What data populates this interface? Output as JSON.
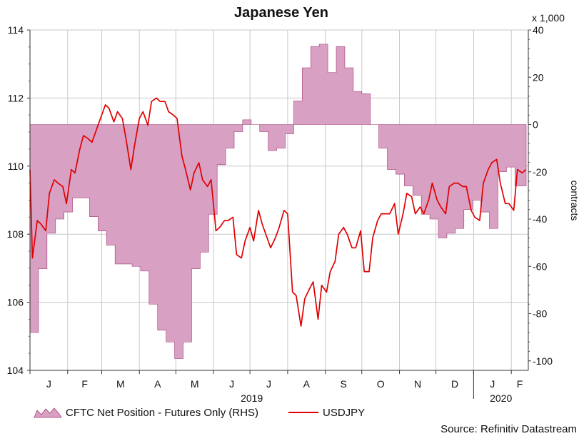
{
  "chart_data": {
    "type": "area+line",
    "title": "Japanese Yen",
    "left_axis": {
      "ticks": [
        104,
        106,
        108,
        110,
        112,
        114
      ],
      "ylim": [
        104,
        114
      ]
    },
    "right_axis": {
      "unit_note": "x 1,000",
      "label": "contracts",
      "ticks": [
        40,
        20,
        0,
        -20,
        -40,
        -60,
        -80,
        -100
      ],
      "ylim": [
        -104,
        40
      ]
    },
    "x_axis": {
      "months": [
        "J",
        "F",
        "M",
        "A",
        "M",
        "J",
        "J",
        "A",
        "S",
        "O",
        "N",
        "D",
        "J",
        "F"
      ],
      "years": [
        "2019",
        "2020"
      ],
      "start": "2019-01-01",
      "end": "2020-02-15"
    },
    "legend": [
      {
        "name": "CFTC Net Position - Futures Only (RHS)",
        "color": "#d8a0c2"
      },
      {
        "name": "USDJPY",
        "color": "#e00000"
      }
    ],
    "source": "Source: Refinitiv Datastream",
    "colors": {
      "area_fill": "#d8a0c2",
      "area_stroke": "#a23a74",
      "line": "#e00000",
      "grid": "#c8c8c8"
    },
    "series": [
      {
        "name": "CFTC Net Position - Futures Only (RHS)",
        "axis": "right",
        "style": "step-area",
        "points": [
          [
            "2019-01-01",
            -88
          ],
          [
            "2019-01-08",
            -61
          ],
          [
            "2019-01-15",
            -46
          ],
          [
            "2019-01-22",
            -40
          ],
          [
            "2019-01-29",
            -37
          ],
          [
            "2019-02-05",
            -31
          ],
          [
            "2019-02-12",
            -31
          ],
          [
            "2019-02-19",
            -39
          ],
          [
            "2019-02-26",
            -45
          ],
          [
            "2019-03-05",
            -51
          ],
          [
            "2019-03-12",
            -59
          ],
          [
            "2019-03-19",
            -59
          ],
          [
            "2019-03-26",
            -60
          ],
          [
            "2019-04-02",
            -62
          ],
          [
            "2019-04-09",
            -76
          ],
          [
            "2019-04-16",
            -87
          ],
          [
            "2019-04-23",
            -92
          ],
          [
            "2019-04-30",
            -99
          ],
          [
            "2019-05-07",
            -92
          ],
          [
            "2019-05-14",
            -61
          ],
          [
            "2019-05-21",
            -54
          ],
          [
            "2019-05-28",
            -38
          ],
          [
            "2019-06-04",
            -17
          ],
          [
            "2019-06-11",
            -10
          ],
          [
            "2019-06-18",
            -3
          ],
          [
            "2019-06-25",
            2
          ],
          [
            "2019-07-02",
            0
          ],
          [
            "2019-07-09",
            -3
          ],
          [
            "2019-07-16",
            -11
          ],
          [
            "2019-07-23",
            -10
          ],
          [
            "2019-07-30",
            -4
          ],
          [
            "2019-08-06",
            10
          ],
          [
            "2019-08-13",
            24
          ],
          [
            "2019-08-20",
            33
          ],
          [
            "2019-08-27",
            34
          ],
          [
            "2019-09-03",
            22
          ],
          [
            "2019-09-10",
            33
          ],
          [
            "2019-09-17",
            24
          ],
          [
            "2019-09-24",
            14
          ],
          [
            "2019-10-01",
            13
          ],
          [
            "2019-10-08",
            0
          ],
          [
            "2019-10-15",
            -10
          ],
          [
            "2019-10-22",
            -19
          ],
          [
            "2019-10-29",
            -21
          ],
          [
            "2019-11-05",
            -26
          ],
          [
            "2019-11-12",
            -30
          ],
          [
            "2019-11-19",
            -38
          ],
          [
            "2019-11-26",
            -40
          ],
          [
            "2019-12-03",
            -48
          ],
          [
            "2019-12-10",
            -46
          ],
          [
            "2019-12-17",
            -44
          ],
          [
            "2019-12-24",
            -36
          ],
          [
            "2019-12-31",
            -32
          ],
          [
            "2020-01-07",
            -37
          ],
          [
            "2020-01-14",
            -44
          ],
          [
            "2020-01-21",
            -20
          ],
          [
            "2020-01-28",
            -18
          ],
          [
            "2020-02-04",
            -26
          ],
          [
            "2020-02-11",
            -26
          ]
        ]
      },
      {
        "name": "USDJPY",
        "axis": "left",
        "style": "line",
        "points": [
          [
            "2019-01-01",
            109.9
          ],
          [
            "2019-01-03",
            107.3
          ],
          [
            "2019-01-07",
            108.4
          ],
          [
            "2019-01-10",
            108.3
          ],
          [
            "2019-01-14",
            108.1
          ],
          [
            "2019-01-17",
            109.2
          ],
          [
            "2019-01-21",
            109.6
          ],
          [
            "2019-01-24",
            109.5
          ],
          [
            "2019-01-28",
            109.4
          ],
          [
            "2019-01-31",
            108.9
          ],
          [
            "2019-02-04",
            109.9
          ],
          [
            "2019-02-07",
            109.8
          ],
          [
            "2019-02-11",
            110.5
          ],
          [
            "2019-02-14",
            110.9
          ],
          [
            "2019-02-18",
            110.8
          ],
          [
            "2019-02-21",
            110.7
          ],
          [
            "2019-02-25",
            111.1
          ],
          [
            "2019-02-28",
            111.4
          ],
          [
            "2019-03-04",
            111.8
          ],
          [
            "2019-03-07",
            111.7
          ],
          [
            "2019-03-11",
            111.3
          ],
          [
            "2019-03-14",
            111.6
          ],
          [
            "2019-03-18",
            111.4
          ],
          [
            "2019-03-21",
            110.8
          ],
          [
            "2019-03-25",
            109.9
          ],
          [
            "2019-03-28",
            110.6
          ],
          [
            "2019-04-01",
            111.4
          ],
          [
            "2019-04-04",
            111.6
          ],
          [
            "2019-04-08",
            111.2
          ],
          [
            "2019-04-11",
            111.9
          ],
          [
            "2019-04-15",
            112.0
          ],
          [
            "2019-04-18",
            111.9
          ],
          [
            "2019-04-22",
            111.9
          ],
          [
            "2019-04-25",
            111.6
          ],
          [
            "2019-04-29",
            111.5
          ],
          [
            "2019-05-02",
            111.4
          ],
          [
            "2019-05-06",
            110.3
          ],
          [
            "2019-05-09",
            109.9
          ],
          [
            "2019-05-13",
            109.3
          ],
          [
            "2019-05-16",
            109.8
          ],
          [
            "2019-05-20",
            110.1
          ],
          [
            "2019-05-23",
            109.6
          ],
          [
            "2019-05-27",
            109.4
          ],
          [
            "2019-05-30",
            109.6
          ],
          [
            "2019-06-03",
            108.1
          ],
          [
            "2019-06-06",
            108.2
          ],
          [
            "2019-06-10",
            108.4
          ],
          [
            "2019-06-13",
            108.4
          ],
          [
            "2019-06-17",
            108.5
          ],
          [
            "2019-06-20",
            107.4
          ],
          [
            "2019-06-24",
            107.3
          ],
          [
            "2019-06-27",
            107.8
          ],
          [
            "2019-07-01",
            108.2
          ],
          [
            "2019-07-04",
            107.8
          ],
          [
            "2019-07-08",
            108.7
          ],
          [
            "2019-07-11",
            108.3
          ],
          [
            "2019-07-15",
            107.9
          ],
          [
            "2019-07-18",
            107.6
          ],
          [
            "2019-07-22",
            107.9
          ],
          [
            "2019-07-25",
            108.2
          ],
          [
            "2019-07-29",
            108.7
          ],
          [
            "2019-08-01",
            108.6
          ],
          [
            "2019-08-05",
            106.3
          ],
          [
            "2019-08-08",
            106.2
          ],
          [
            "2019-08-12",
            105.3
          ],
          [
            "2019-08-15",
            106.1
          ],
          [
            "2019-08-19",
            106.4
          ],
          [
            "2019-08-22",
            106.6
          ],
          [
            "2019-08-26",
            105.5
          ],
          [
            "2019-08-29",
            106.5
          ],
          [
            "2019-09-02",
            106.3
          ],
          [
            "2019-09-05",
            106.9
          ],
          [
            "2019-09-09",
            107.2
          ],
          [
            "2019-09-12",
            108.0
          ],
          [
            "2019-09-16",
            108.2
          ],
          [
            "2019-09-19",
            108.0
          ],
          [
            "2019-09-23",
            107.6
          ],
          [
            "2019-09-26",
            107.6
          ],
          [
            "2019-09-30",
            108.1
          ],
          [
            "2019-10-03",
            106.9
          ],
          [
            "2019-10-07",
            106.9
          ],
          [
            "2019-10-10",
            107.9
          ],
          [
            "2019-10-14",
            108.4
          ],
          [
            "2019-10-17",
            108.6
          ],
          [
            "2019-10-21",
            108.6
          ],
          [
            "2019-10-24",
            108.6
          ],
          [
            "2019-10-28",
            108.9
          ],
          [
            "2019-10-31",
            108.0
          ],
          [
            "2019-11-04",
            108.6
          ],
          [
            "2019-11-07",
            109.2
          ],
          [
            "2019-11-11",
            109.1
          ],
          [
            "2019-11-14",
            108.6
          ],
          [
            "2019-11-18",
            108.8
          ],
          [
            "2019-11-21",
            108.6
          ],
          [
            "2019-11-25",
            109.0
          ],
          [
            "2019-11-28",
            109.5
          ],
          [
            "2019-12-02",
            109.0
          ],
          [
            "2019-12-05",
            108.8
          ],
          [
            "2019-12-09",
            108.6
          ],
          [
            "2019-12-12",
            109.4
          ],
          [
            "2019-12-16",
            109.5
          ],
          [
            "2019-12-19",
            109.5
          ],
          [
            "2019-12-23",
            109.4
          ],
          [
            "2019-12-26",
            109.4
          ],
          [
            "2019-12-30",
            108.7
          ],
          [
            "2020-01-02",
            108.5
          ],
          [
            "2020-01-06",
            108.4
          ],
          [
            "2020-01-09",
            109.5
          ],
          [
            "2020-01-13",
            109.9
          ],
          [
            "2020-01-16",
            110.1
          ],
          [
            "2020-01-20",
            110.2
          ],
          [
            "2020-01-23",
            109.5
          ],
          [
            "2020-01-27",
            108.9
          ],
          [
            "2020-01-30",
            108.9
          ],
          [
            "2020-02-03",
            108.7
          ],
          [
            "2020-02-06",
            109.9
          ],
          [
            "2020-02-10",
            109.8
          ],
          [
            "2020-02-13",
            109.9
          ]
        ]
      }
    ]
  }
}
